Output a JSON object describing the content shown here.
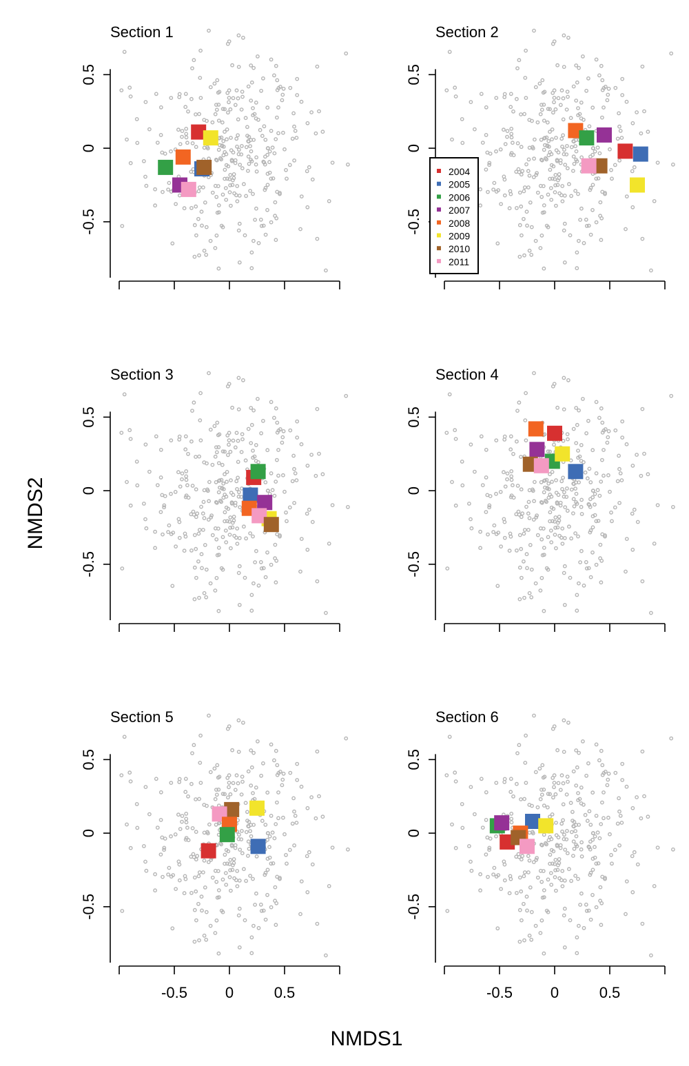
{
  "chart_data": {
    "type": "scatter",
    "xlabel": "NMDS1",
    "ylabel": "NMDS2",
    "xlim": [
      -1.0,
      1.0
    ],
    "ylim": [
      -0.88,
      0.82
    ],
    "x_ticks": [
      -1.0,
      -0.5,
      0,
      0.5,
      1.0
    ],
    "x_tick_labels": [
      "-0.5",
      "0",
      "0.5"
    ],
    "x_tick_label_values": [
      -0.5,
      0,
      0.5
    ],
    "y_ticks": [
      -0.5,
      0,
      0.5
    ],
    "y_tick_labels": [
      "-0.5",
      "0",
      "0.5"
    ],
    "legend": {
      "panel": 2,
      "years": [
        "2004",
        "2005",
        "2006",
        "2007",
        "2008",
        "2009",
        "2010",
        "2011"
      ],
      "colors": [
        "#d73030",
        "#3e6db5",
        "#33a046",
        "#953296",
        "#f26522",
        "#f2e42b",
        "#a0622a",
        "#f49ac2"
      ]
    },
    "panels": [
      {
        "title": "Section 1",
        "points": [
          {
            "year": "2004",
            "x": -0.28,
            "y": 0.11
          },
          {
            "year": "2009",
            "x": -0.17,
            "y": 0.07
          },
          {
            "year": "2008",
            "x": -0.42,
            "y": -0.06
          },
          {
            "year": "2006",
            "x": -0.58,
            "y": -0.13
          },
          {
            "year": "2005",
            "x": -0.25,
            "y": -0.14
          },
          {
            "year": "2010",
            "x": -0.23,
            "y": -0.13
          },
          {
            "year": "2007",
            "x": -0.45,
            "y": -0.25
          },
          {
            "year": "2011",
            "x": -0.37,
            "y": -0.28
          }
        ]
      },
      {
        "title": "Section 2",
        "points": [
          {
            "year": "2008",
            "x": 0.19,
            "y": 0.12
          },
          {
            "year": "2006",
            "x": 0.29,
            "y": 0.07
          },
          {
            "year": "2007",
            "x": 0.45,
            "y": 0.09
          },
          {
            "year": "2004",
            "x": 0.64,
            "y": -0.02
          },
          {
            "year": "2005",
            "x": 0.78,
            "y": -0.04
          },
          {
            "year": "2010",
            "x": 0.41,
            "y": -0.12
          },
          {
            "year": "2011",
            "x": 0.31,
            "y": -0.12
          },
          {
            "year": "2009",
            "x": 0.75,
            "y": -0.25
          }
        ]
      },
      {
        "title": "Section 3",
        "points": [
          {
            "year": "2004",
            "x": 0.22,
            "y": 0.09
          },
          {
            "year": "2006",
            "x": 0.26,
            "y": 0.13
          },
          {
            "year": "2005",
            "x": 0.19,
            "y": -0.03
          },
          {
            "year": "2007",
            "x": 0.32,
            "y": -0.08
          },
          {
            "year": "2009",
            "x": 0.36,
            "y": -0.19
          },
          {
            "year": "2008",
            "x": 0.18,
            "y": -0.12
          },
          {
            "year": "2011",
            "x": 0.27,
            "y": -0.17
          },
          {
            "year": "2010",
            "x": 0.38,
            "y": -0.23
          }
        ]
      },
      {
        "title": "Section 4",
        "points": [
          {
            "year": "2008",
            "x": -0.17,
            "y": 0.42
          },
          {
            "year": "2004",
            "x": 0.0,
            "y": 0.39
          },
          {
            "year": "2007",
            "x": -0.16,
            "y": 0.28
          },
          {
            "year": "2006",
            "x": -0.02,
            "y": 0.2
          },
          {
            "year": "2009",
            "x": 0.07,
            "y": 0.25
          },
          {
            "year": "2010",
            "x": -0.22,
            "y": 0.18
          },
          {
            "year": "2011",
            "x": -0.12,
            "y": 0.17
          },
          {
            "year": "2005",
            "x": 0.19,
            "y": 0.13
          }
        ]
      },
      {
        "title": "Section 5",
        "points": [
          {
            "year": "2009",
            "x": 0.25,
            "y": 0.17
          },
          {
            "year": "2010",
            "x": 0.02,
            "y": 0.16
          },
          {
            "year": "2011",
            "x": -0.09,
            "y": 0.13
          },
          {
            "year": "2008",
            "x": 0.0,
            "y": 0.06
          },
          {
            "year": "2006",
            "x": -0.02,
            "y": -0.01
          },
          {
            "year": "2005",
            "x": 0.26,
            "y": -0.09
          },
          {
            "year": "2004",
            "x": -0.19,
            "y": -0.12
          }
        ]
      },
      {
        "title": "Section 6",
        "points": [
          {
            "year": "2006",
            "x": -0.52,
            "y": 0.05
          },
          {
            "year": "2007",
            "x": -0.48,
            "y": 0.07
          },
          {
            "year": "2005",
            "x": -0.2,
            "y": 0.08
          },
          {
            "year": "2009",
            "x": -0.08,
            "y": 0.05
          },
          {
            "year": "2008",
            "x": -0.31,
            "y": 0.0
          },
          {
            "year": "2004",
            "x": -0.43,
            "y": -0.06
          },
          {
            "year": "2010",
            "x": -0.33,
            "y": -0.03
          },
          {
            "year": "2011",
            "x": -0.25,
            "y": -0.09
          }
        ]
      }
    ]
  }
}
